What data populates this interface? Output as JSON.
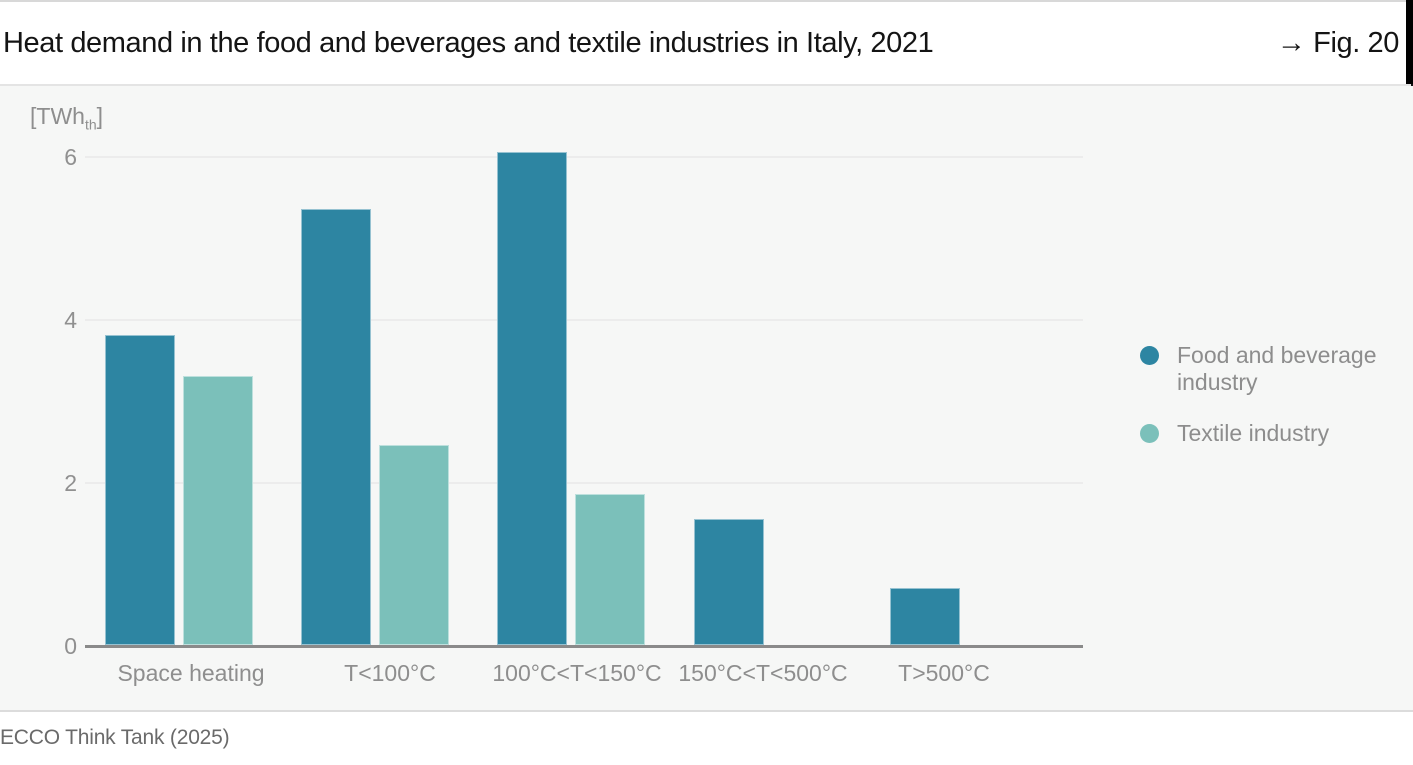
{
  "header": {
    "fig_label": "→ Fig. 20"
  },
  "footer": {
    "source": "ECCO Think Tank (2025)"
  },
  "chart_data": {
    "type": "bar",
    "title": "Heat demand in the food and beverages and textile industries in Italy, 2021",
    "unit": {
      "prefix": "[TWh",
      "sub": "th",
      "suffix": "]"
    },
    "categories": [
      "Space heating",
      "T<100°C",
      "100°C<T<150°C",
      "150°C<T<500°C",
      "T>500°C"
    ],
    "series": [
      {
        "name": "Food and beverage industry",
        "color": "#2d85a2",
        "values": [
          3.8,
          5.35,
          6.05,
          1.55,
          0.7
        ]
      },
      {
        "name": "Textile industry",
        "color": "#7bc0ba",
        "values": [
          3.3,
          2.45,
          1.85,
          null,
          null
        ]
      }
    ],
    "yticks": [
      0,
      2,
      4,
      6
    ],
    "ylim": [
      0,
      6.2
    ],
    "grid": "horizontal",
    "legend_position": "right",
    "background_color": "#f6f7f6"
  }
}
